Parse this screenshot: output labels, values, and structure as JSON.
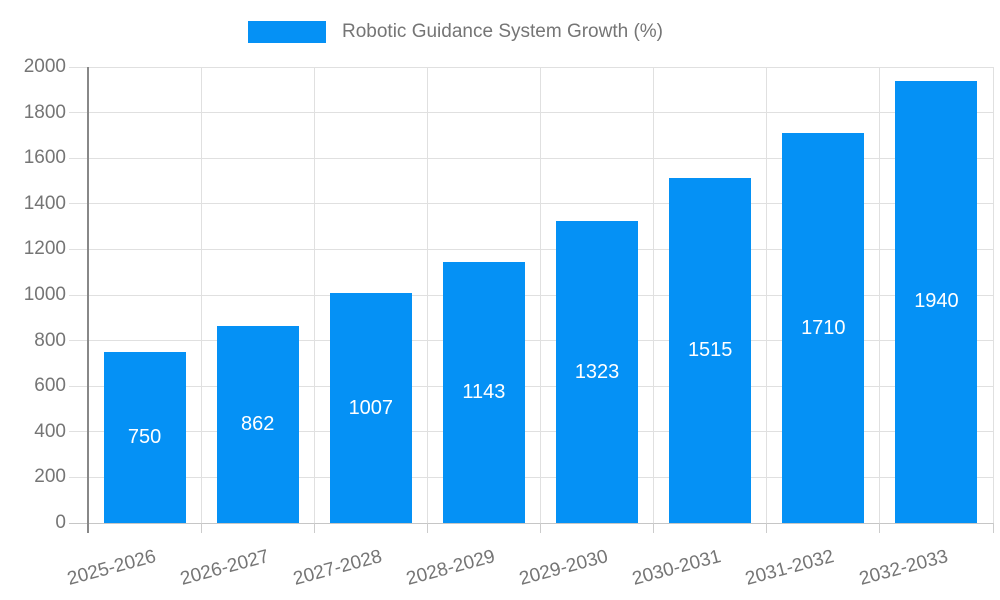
{
  "colors": {
    "bar": "#0591F5",
    "axis_text": "#757575",
    "grid": "#E0E0E0",
    "zero_line": "#C6C6C6",
    "tick": "#CCCCCC",
    "axis_line": "#888888",
    "value_label": "#FFFFFF",
    "background": "#FFFFFF"
  },
  "chart_data": {
    "type": "bar",
    "title": "Robotic Guidance System Growth (%)",
    "legend_position": "top-center",
    "categories": [
      "2025-2026",
      "2026-2027",
      "2027-2028",
      "2028-2029",
      "2029-2030",
      "2030-2031",
      "2031-2032",
      "2032-2033"
    ],
    "values": [
      750,
      862,
      1007,
      1143,
      1323,
      1515,
      1710,
      1940
    ],
    "value_labels": [
      "750",
      "862",
      "1007",
      "1143",
      "1323",
      "1515",
      "1710",
      "1940"
    ],
    "xlabel": "",
    "ylabel": "",
    "ylim": [
      0,
      2000
    ],
    "ytick_step": 200,
    "ytick_labels": [
      "0",
      "200",
      "400",
      "600",
      "800",
      "1000",
      "1200",
      "1400",
      "1600",
      "1800",
      "2000"
    ],
    "grid": true,
    "value_labels_inside": true,
    "xlabel_rotation_deg": -15
  }
}
